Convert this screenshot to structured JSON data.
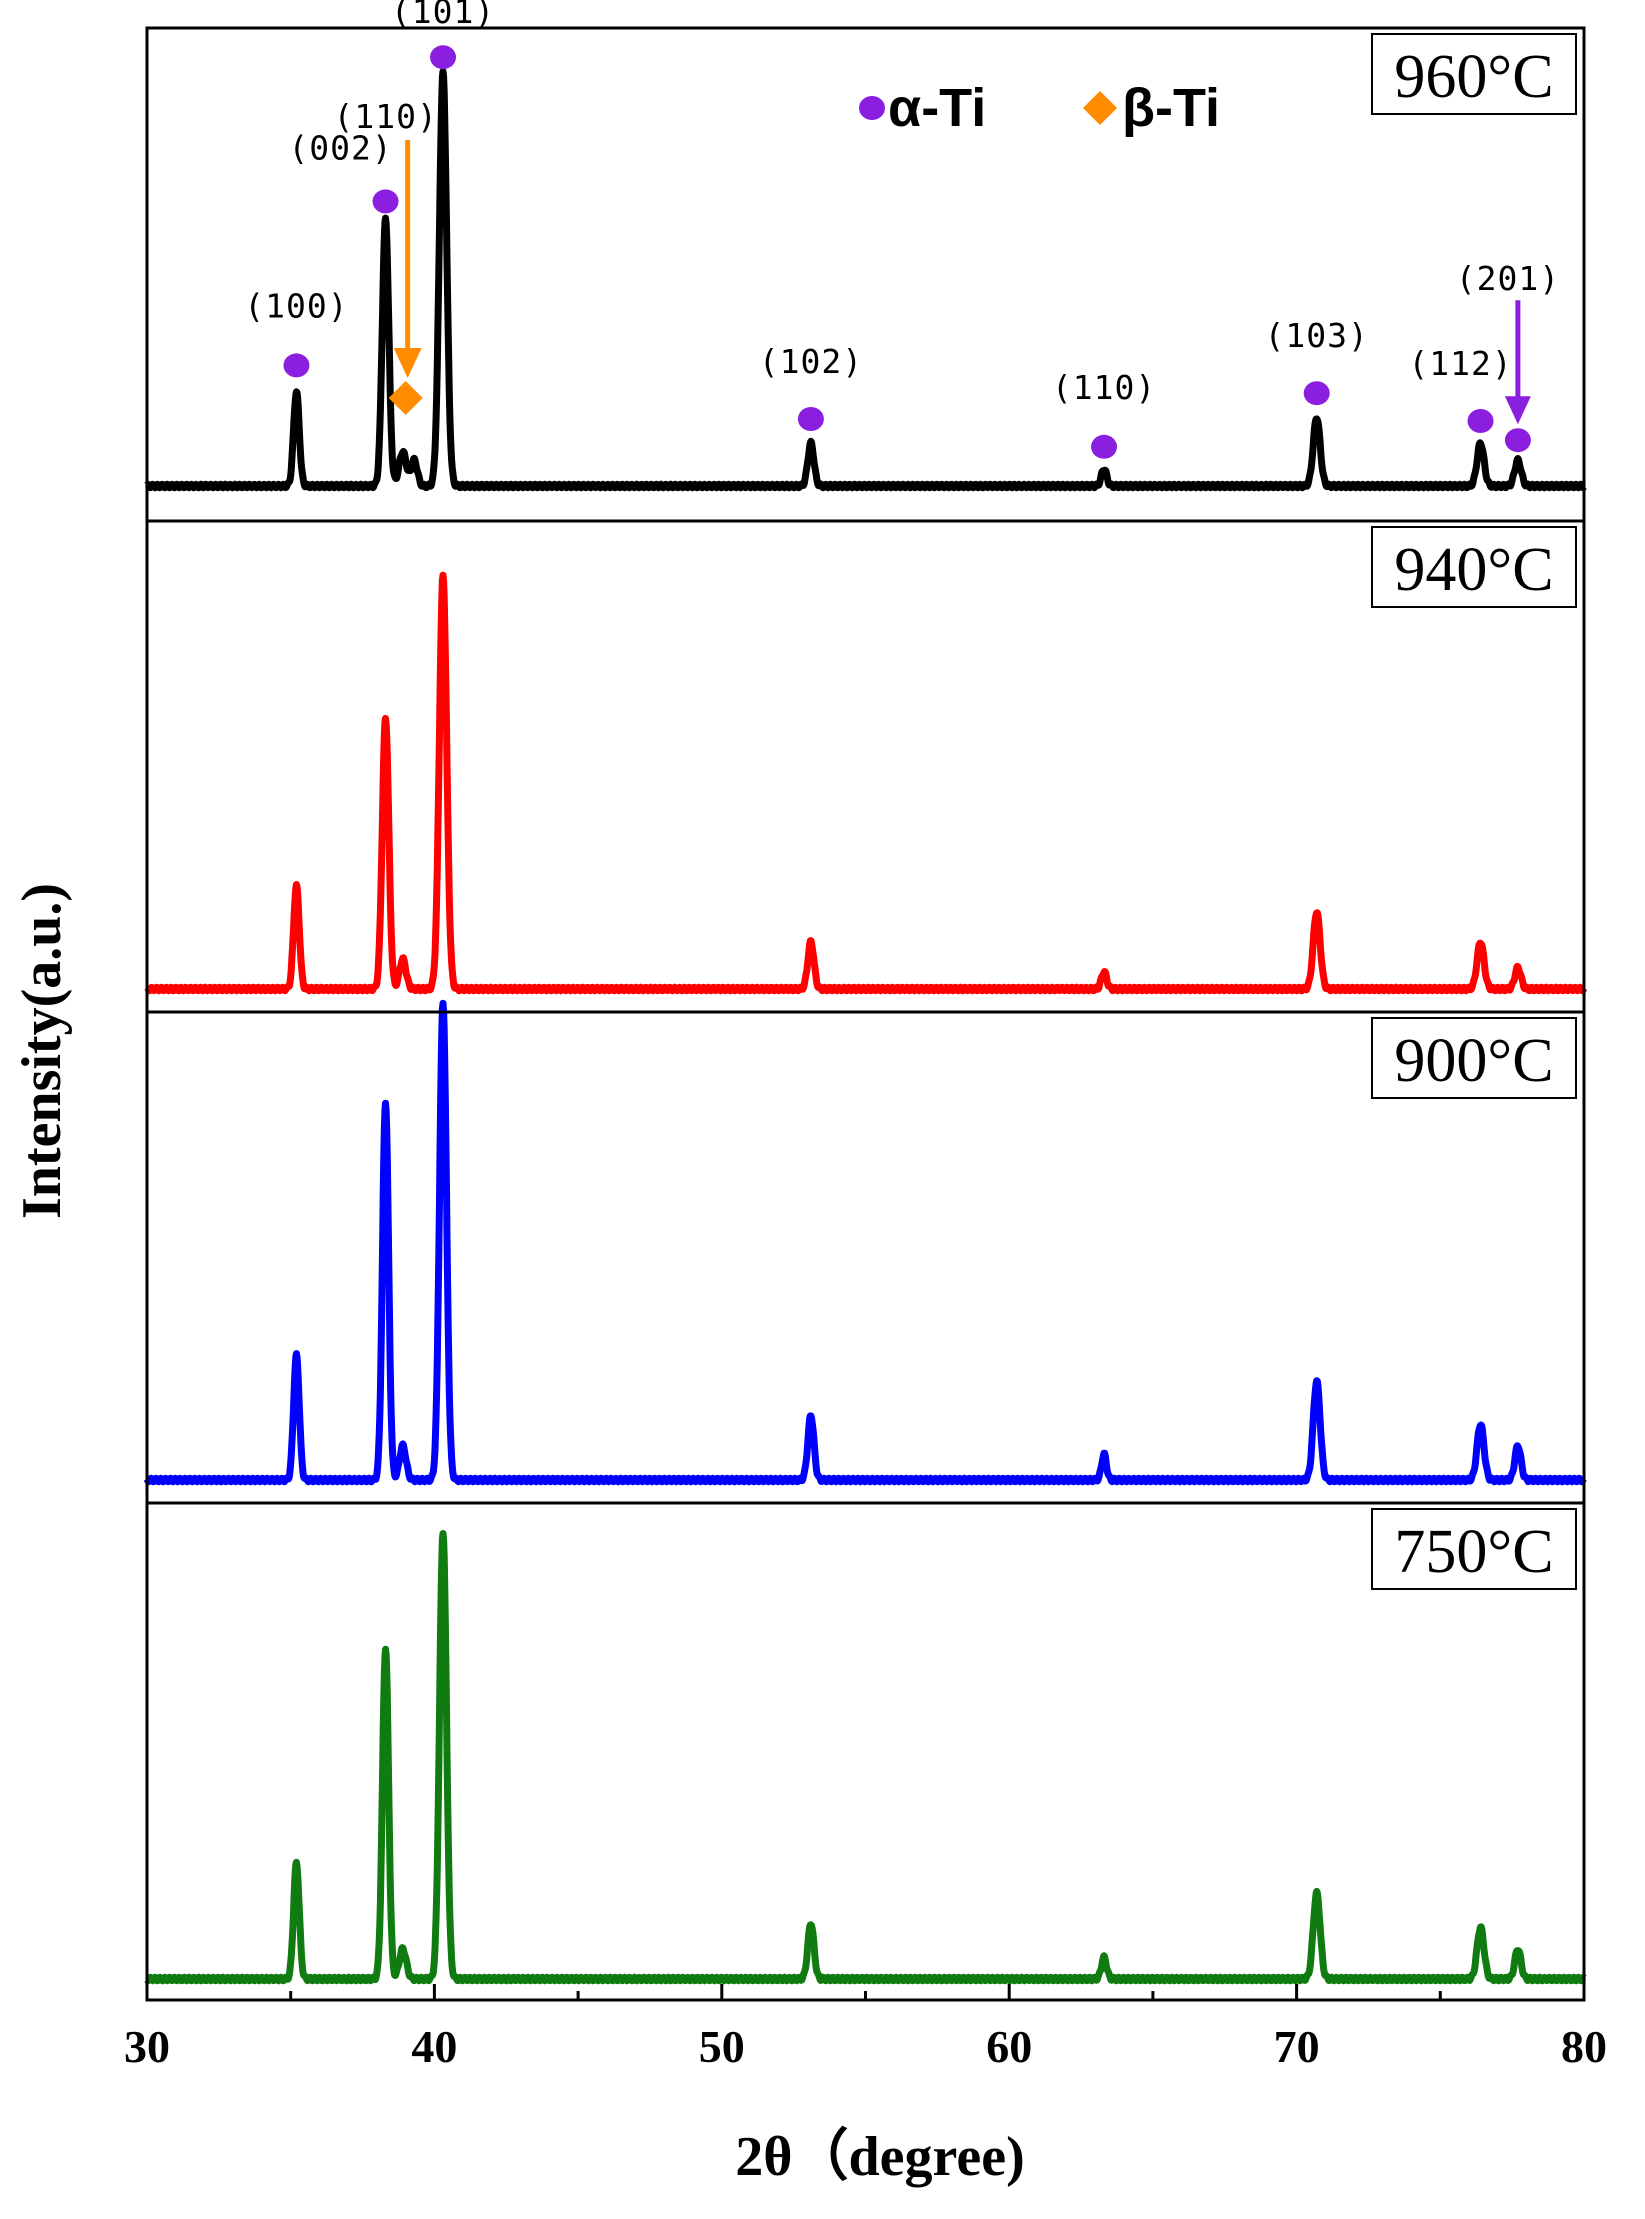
{
  "chart_data": {
    "type": "line",
    "title": "",
    "xlabel": "2θ（degree)",
    "ylabel": "Intensity(a.u.)",
    "xlim": [
      30,
      80
    ],
    "xticks": [
      30,
      40,
      50,
      60,
      70,
      80
    ],
    "xtick_labels": [
      "30",
      "40",
      "50",
      "60",
      "70",
      "80"
    ],
    "legend": [
      {
        "marker": "circle",
        "label": "α-Ti",
        "color": "#8b1fe0"
      },
      {
        "marker": "diamond",
        "label": "β-Ti",
        "color": "#ff8c00"
      }
    ],
    "series": [
      {
        "name": "960°C",
        "label": "960°C",
        "color": "#000000",
        "baseline": 0.0,
        "peaks": [
          {
            "x": 35.2,
            "h": 0.22,
            "w": 0.14
          },
          {
            "x": 38.3,
            "h": 0.62,
            "w": 0.16
          },
          {
            "x": 38.9,
            "h": 0.08,
            "w": 0.18
          },
          {
            "x": 39.3,
            "h": 0.06,
            "w": 0.15
          },
          {
            "x": 40.3,
            "h": 0.96,
            "w": 0.18
          },
          {
            "x": 53.1,
            "h": 0.1,
            "w": 0.15
          },
          {
            "x": 63.3,
            "h": 0.04,
            "w": 0.13
          },
          {
            "x": 70.7,
            "h": 0.16,
            "w": 0.17
          },
          {
            "x": 76.4,
            "h": 0.1,
            "w": 0.17
          },
          {
            "x": 77.7,
            "h": 0.06,
            "w": 0.16
          }
        ]
      },
      {
        "name": "940°C",
        "label": "940°C",
        "color": "#ff0000",
        "baseline": 0.0,
        "peaks": [
          {
            "x": 35.2,
            "h": 0.24,
            "w": 0.14
          },
          {
            "x": 38.3,
            "h": 0.63,
            "w": 0.16
          },
          {
            "x": 38.9,
            "h": 0.07,
            "w": 0.16
          },
          {
            "x": 40.3,
            "h": 0.96,
            "w": 0.18
          },
          {
            "x": 53.1,
            "h": 0.11,
            "w": 0.15
          },
          {
            "x": 63.3,
            "h": 0.04,
            "w": 0.13
          },
          {
            "x": 70.7,
            "h": 0.18,
            "w": 0.17
          },
          {
            "x": 76.4,
            "h": 0.11,
            "w": 0.17
          },
          {
            "x": 77.7,
            "h": 0.05,
            "w": 0.15
          }
        ]
      },
      {
        "name": "900°C",
        "label": "900°C",
        "color": "#0000ff",
        "baseline": 0.0,
        "peaks": [
          {
            "x": 35.2,
            "h": 0.29,
            "w": 0.14
          },
          {
            "x": 38.3,
            "h": 0.88,
            "w": 0.15
          },
          {
            "x": 38.9,
            "h": 0.08,
            "w": 0.16
          },
          {
            "x": 40.3,
            "h": 1.11,
            "w": 0.17
          },
          {
            "x": 53.1,
            "h": 0.15,
            "w": 0.15
          },
          {
            "x": 63.3,
            "h": 0.06,
            "w": 0.12
          },
          {
            "x": 70.7,
            "h": 0.23,
            "w": 0.17
          },
          {
            "x": 76.4,
            "h": 0.13,
            "w": 0.17
          },
          {
            "x": 77.7,
            "h": 0.08,
            "w": 0.15
          }
        ]
      },
      {
        "name": "750°C",
        "label": "750°C",
        "color": "#107b10",
        "baseline": 0.0,
        "peaks": [
          {
            "x": 35.2,
            "h": 0.27,
            "w": 0.14
          },
          {
            "x": 38.3,
            "h": 0.77,
            "w": 0.15
          },
          {
            "x": 38.9,
            "h": 0.07,
            "w": 0.17
          },
          {
            "x": 40.3,
            "h": 1.04,
            "w": 0.17
          },
          {
            "x": 53.1,
            "h": 0.13,
            "w": 0.15
          },
          {
            "x": 63.3,
            "h": 0.05,
            "w": 0.13
          },
          {
            "x": 70.7,
            "h": 0.2,
            "w": 0.17
          },
          {
            "x": 76.4,
            "h": 0.12,
            "w": 0.17
          },
          {
            "x": 77.7,
            "h": 0.07,
            "w": 0.15
          }
        ]
      }
    ],
    "annotations": [
      {
        "text": "(100)",
        "x": 35.2,
        "phase": "α-Ti"
      },
      {
        "text": "(002)",
        "x": 38.3,
        "phase": "α-Ti"
      },
      {
        "text": "(110)",
        "x": 39.0,
        "phase": "β-Ti"
      },
      {
        "text": "(101)",
        "x": 40.3,
        "phase": "α-Ti"
      },
      {
        "text": "(102)",
        "x": 53.1,
        "phase": "α-Ti"
      },
      {
        "text": "(110)",
        "x": 63.3,
        "phase": "α-Ti"
      },
      {
        "text": "(103)",
        "x": 70.7,
        "phase": "α-Ti"
      },
      {
        "text": "(112)",
        "x": 76.4,
        "phase": "α-Ti"
      },
      {
        "text": "(201)",
        "x": 77.7,
        "phase": "α-Ti"
      }
    ]
  }
}
